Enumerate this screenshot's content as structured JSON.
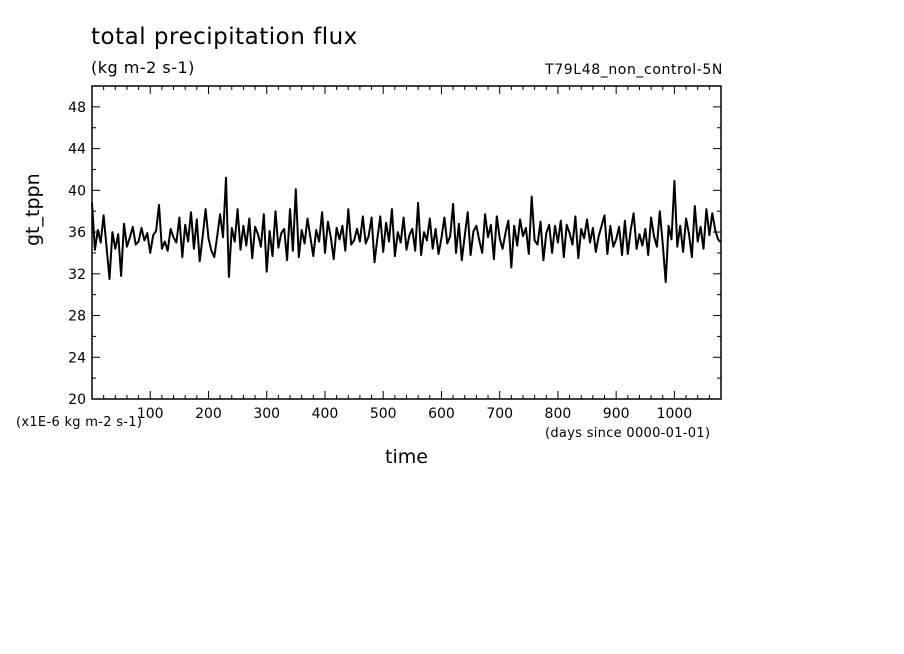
{
  "header": {
    "title": "total precipitation flux",
    "subtitle": "(kg m-2 s-1)",
    "run_name": "T79L48_non_control-5N"
  },
  "axes": {
    "xlabel": "time",
    "xunit": "(days since 0000-01-01)",
    "ylabel": "gt_tppn",
    "yunit": "(x1E-6 kg m-2 s-1)"
  },
  "chart_data": {
    "type": "line",
    "title": "total precipitation flux",
    "subtitle": "(kg m-2 s-1)",
    "xlabel": "time",
    "ylabel": "gt_tppn",
    "xlim": [
      0,
      1080
    ],
    "ylim": [
      20,
      50
    ],
    "x_ticks": [
      100,
      200,
      300,
      400,
      500,
      600,
      700,
      800,
      900,
      1000
    ],
    "y_ticks": [
      20,
      24,
      28,
      32,
      36,
      40,
      44,
      48
    ],
    "grid": false,
    "line_color": "#000000",
    "series": [
      {
        "x": [
          0,
          5,
          10,
          15,
          20,
          25,
          30,
          35,
          40,
          45,
          50,
          55,
          60,
          65,
          70,
          75,
          80,
          85,
          90,
          95,
          100,
          105,
          110,
          115,
          120,
          125,
          130,
          135,
          140,
          145,
          150,
          155,
          160,
          165,
          170,
          175,
          180,
          185,
          190,
          195,
          200,
          205,
          210,
          215,
          220,
          225,
          230,
          235,
          240,
          245,
          250,
          255,
          260,
          265,
          270,
          275,
          280,
          285,
          290,
          295,
          300,
          305,
          310,
          315,
          320,
          325,
          330,
          335,
          340,
          345,
          350,
          355,
          360,
          365,
          370,
          375,
          380,
          385,
          390,
          395,
          400,
          405,
          410,
          415,
          420,
          425,
          430,
          435,
          440,
          445,
          450,
          455,
          460,
          465,
          470,
          475,
          480,
          485,
          490,
          495,
          500,
          505,
          510,
          515,
          520,
          525,
          530,
          535,
          540,
          545,
          550,
          555,
          560,
          565,
          570,
          575,
          580,
          585,
          590,
          595,
          600,
          605,
          610,
          615,
          620,
          625,
          630,
          635,
          640,
          645,
          650,
          655,
          660,
          665,
          670,
          675,
          680,
          685,
          690,
          695,
          700,
          705,
          710,
          715,
          720,
          725,
          730,
          735,
          740,
          745,
          750,
          755,
          760,
          765,
          770,
          775,
          780,
          785,
          790,
          795,
          800,
          805,
          810,
          815,
          820,
          825,
          830,
          835,
          840,
          845,
          850,
          855,
          860,
          865,
          870,
          875,
          880,
          885,
          890,
          895,
          900,
          905,
          910,
          915,
          920,
          925,
          930,
          935,
          940,
          945,
          950,
          955,
          960,
          965,
          970,
          975,
          980,
          985,
          990,
          995,
          1000,
          1005,
          1010,
          1015,
          1020,
          1025,
          1030,
          1035,
          1040,
          1045,
          1050,
          1055,
          1060,
          1065,
          1070,
          1075,
          1080
        ],
        "values": [
          38.8,
          34.3,
          36.2,
          35.0,
          37.6,
          34.5,
          31.5,
          36.0,
          34.4,
          35.8,
          31.8,
          36.8,
          34.6,
          35.5,
          36.5,
          34.8,
          35.1,
          36.4,
          35.2,
          35.9,
          34.0,
          35.7,
          36.1,
          38.6,
          34.4,
          35.1,
          34.2,
          36.3,
          35.5,
          35.0,
          37.4,
          33.6,
          36.7,
          35.1,
          37.9,
          34.4,
          37.2,
          33.2,
          35.6,
          38.2,
          35.4,
          34.2,
          33.6,
          35.6,
          37.7,
          35.5,
          41.2,
          31.7,
          36.4,
          35.1,
          38.2,
          34.3,
          36.6,
          34.7,
          37.3,
          33.5,
          36.5,
          35.8,
          34.6,
          37.7,
          32.2,
          36.1,
          33.7,
          38.0,
          34.5,
          35.9,
          36.3,
          33.3,
          38.2,
          34.2,
          40.1,
          33.6,
          36.2,
          34.9,
          37.3,
          35.5,
          33.7,
          36.2,
          35.1,
          37.9,
          34.0,
          37.0,
          35.5,
          33.4,
          36.4,
          35.3,
          36.6,
          34.2,
          38.2,
          34.8,
          35.2,
          36.3,
          35.1,
          37.5,
          34.9,
          35.6,
          37.4,
          33.1,
          35.4,
          37.5,
          34.1,
          36.9,
          35.1,
          38.2,
          33.7,
          36.0,
          35.0,
          37.4,
          34.3,
          35.7,
          36.3,
          34.2,
          38.8,
          33.8,
          36.0,
          35.2,
          37.3,
          34.4,
          36.3,
          33.9,
          35.4,
          37.4,
          34.9,
          35.6,
          38.7,
          34.0,
          36.8,
          33.3,
          35.6,
          37.9,
          33.8,
          36.1,
          36.6,
          35.2,
          34.0,
          37.7,
          35.5,
          36.7,
          33.4,
          37.5,
          35.4,
          34.4,
          35.9,
          37.1,
          32.6,
          36.6,
          34.7,
          37.2,
          35.6,
          36.4,
          33.9,
          39.4,
          35.2,
          34.8,
          37.0,
          33.3,
          35.9,
          36.7,
          34.0,
          36.6,
          35.0,
          37.1,
          33.6,
          36.7,
          35.9,
          34.8,
          37.5,
          33.5,
          36.3,
          35.4,
          37.2,
          35.0,
          36.4,
          34.1,
          35.6,
          36.6,
          37.6,
          33.9,
          36.6,
          34.6,
          35.3,
          36.5,
          33.8,
          37.1,
          33.9,
          36.2,
          37.8,
          34.4,
          35.8,
          34.7,
          36.3,
          33.8,
          37.4,
          35.6,
          34.6,
          38.0,
          34.8,
          31.2,
          36.6,
          35.3,
          40.9,
          34.6,
          36.6,
          34.1,
          37.3,
          35.8,
          33.6,
          38.5,
          35.1,
          36.5,
          34.4,
          38.2,
          35.7,
          37.8,
          36.2,
          35.3,
          35.0
        ]
      }
    ]
  }
}
